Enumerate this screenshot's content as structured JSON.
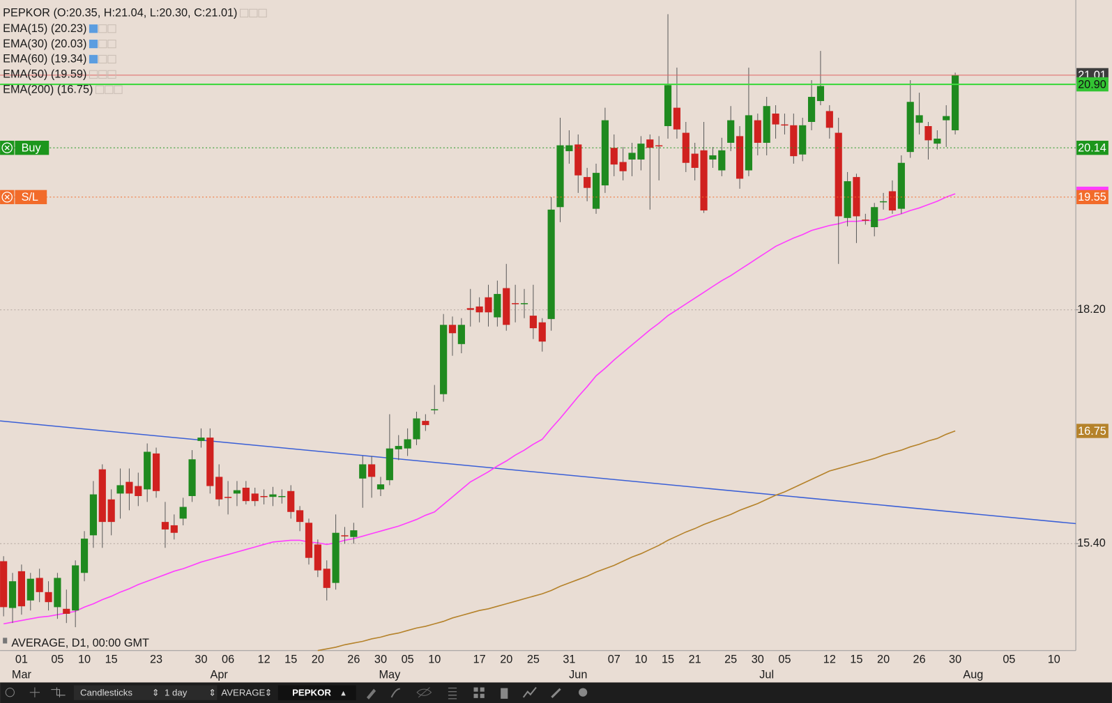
{
  "chart_data": {
    "type": "candlestick",
    "title": "PEPKOR (O:20.35, H:21.04, L:20.30, C:21.01)",
    "footer_label": "AVERAGE, D1, 00:00 GMT",
    "up_color": "#1f8a1f",
    "down_color": "#d0211f",
    "ylim": [
      14.12,
      21.91
    ],
    "yticks": [
      {
        "value": 15.4,
        "label": "15.40"
      },
      {
        "value": 18.2,
        "label": "18.20"
      }
    ],
    "grid": true,
    "categories": [
      null,
      null,
      "01",
      null,
      null,
      null,
      "05",
      null,
      null,
      "10",
      null,
      null,
      "15",
      null,
      null,
      null,
      null,
      "23",
      null,
      null,
      null,
      null,
      "30",
      null,
      null,
      "06",
      null,
      null,
      null,
      "12",
      null,
      null,
      "15",
      null,
      null,
      "20",
      null,
      null,
      null,
      "26",
      null,
      null,
      "30",
      null,
      null,
      "05",
      null,
      null,
      "10",
      null,
      null,
      null,
      null,
      "17",
      null,
      null,
      "20",
      null,
      null,
      "25",
      null,
      null,
      null,
      "31",
      null,
      null,
      null,
      null,
      "07",
      null,
      null,
      "10",
      null,
      null,
      "15",
      null,
      null,
      "21",
      null,
      null,
      null,
      "25",
      null,
      null,
      "30",
      null,
      null,
      "05",
      null,
      null,
      null,
      null,
      "12",
      null,
      null,
      "15",
      null,
      null,
      "20",
      null,
      null,
      null,
      "26",
      null,
      null,
      null,
      "30",
      null,
      null,
      null,
      null,
      null,
      "05",
      null,
      null,
      null,
      null,
      "10",
      null,
      null
    ],
    "month_categories": [
      null,
      null,
      "Mar",
      null,
      null,
      null,
      null,
      null,
      null,
      null,
      null,
      null,
      null,
      null,
      null,
      null,
      null,
      null,
      null,
      null,
      null,
      null,
      null,
      null,
      "Apr",
      null,
      null,
      null,
      null,
      null,
      null,
      null,
      null,
      null,
      null,
      null,
      null,
      null,
      null,
      null,
      null,
      null,
      null,
      "May",
      null,
      null,
      null,
      null,
      null,
      null,
      null,
      null,
      null,
      null,
      null,
      null,
      null,
      null,
      null,
      null,
      null,
      null,
      null,
      null,
      "Jun",
      null,
      null,
      null,
      null,
      null,
      null,
      null,
      null,
      null,
      null,
      null,
      null,
      null,
      null,
      null,
      null,
      null,
      null,
      null,
      null,
      "Jul",
      null,
      null,
      null,
      null,
      null,
      null,
      null,
      null,
      null,
      null,
      null,
      null,
      null,
      null,
      null,
      null,
      null,
      null,
      null,
      null,
      null,
      null,
      "Aug",
      null,
      null,
      null,
      null,
      null,
      null,
      null,
      null,
      null,
      null,
      null
    ],
    "open": [
      15.19,
      14.63,
      15.07,
      14.72,
      14.99,
      14.82,
      14.64,
      14.62,
      14.6,
      15.05,
      15.5,
      16.29,
      15.93,
      16.0,
      16.14,
      16.09,
      16.05,
      16.48,
      15.66,
      15.62,
      15.7,
      15.97,
      16.63,
      16.67,
      16.2,
      15.96,
      16.0,
      16.07,
      16.0,
      15.97,
      15.96,
      15.96,
      16.03,
      15.8,
      15.65,
      15.39,
      15.1,
      14.93,
      15.5,
      15.48,
      16.18,
      16.35,
      16.05,
      16.16,
      16.53,
      16.54,
      16.65,
      16.87,
      17.0,
      17.19,
      18.02,
      17.79,
      18.22,
      18.24,
      18.35,
      18.11,
      18.46,
      18.28,
      18.27,
      18.13,
      18.05,
      18.09,
      19.43,
      20.1,
      20.18,
      19.79,
      19.41,
      19.69,
      20.14,
      19.97,
      20.0,
      20.0,
      20.24,
      20.17,
      20.4,
      20.62,
      20.32,
      20.07,
      20.11,
      20.0,
      19.87,
      20.2,
      20.28,
      19.87,
      20.47,
      20.2,
      20.55,
      20.42,
      20.41,
      20.06,
      20.45,
      20.7,
      20.58,
      20.32,
      19.3,
      19.79,
      19.28,
      19.19,
      19.49,
      19.62,
      19.41,
      20.09,
      20.44,
      20.4,
      20.19,
      20.47,
      20.35,
      null,
      null,
      null,
      null,
      null,
      null,
      null,
      null,
      null,
      null,
      null,
      null,
      null
    ],
    "high": [
      15.25,
      15.05,
      15.15,
      15.05,
      15.1,
      14.95,
      15.05,
      14.85,
      15.2,
      15.55,
      16.15,
      16.35,
      16.05,
      16.3,
      16.3,
      16.25,
      16.6,
      16.55,
      15.9,
      15.75,
      15.95,
      16.52,
      16.78,
      16.78,
      16.35,
      16.15,
      16.15,
      16.15,
      16.07,
      16.05,
      16.08,
      16.05,
      16.1,
      15.85,
      15.7,
      15.45,
      15.2,
      15.75,
      15.6,
      15.65,
      16.45,
      16.45,
      16.2,
      16.95,
      16.7,
      16.78,
      16.98,
      16.95,
      17.3,
      18.15,
      18.12,
      18.1,
      18.45,
      18.35,
      18.5,
      18.55,
      18.75,
      18.5,
      18.45,
      18.5,
      18.1,
      19.55,
      20.5,
      20.35,
      20.3,
      19.9,
      19.95,
      20.62,
      20.3,
      20.15,
      20.2,
      20.28,
      20.3,
      20.28,
      21.74,
      21.1,
      20.45,
      20.2,
      20.45,
      20.15,
      20.26,
      20.64,
      20.4,
      21.1,
      20.55,
      20.75,
      20.65,
      20.55,
      20.55,
      20.5,
      20.95,
      21.3,
      20.65,
      20.5,
      19.85,
      19.83,
      19.35,
      19.48,
      19.6,
      19.75,
      20.05,
      20.95,
      20.8,
      20.45,
      20.35,
      20.65,
      21.04,
      null,
      null,
      null,
      null,
      null,
      null,
      null,
      null,
      null,
      null,
      null,
      null,
      null
    ],
    "low": [
      14.53,
      14.45,
      14.55,
      14.6,
      14.7,
      14.6,
      14.5,
      14.45,
      14.4,
      14.95,
      15.35,
      15.35,
      15.5,
      15.7,
      15.8,
      15.85,
      15.9,
      15.95,
      15.35,
      15.45,
      15.62,
      15.9,
      16.55,
      16.0,
      15.85,
      15.75,
      15.85,
      15.87,
      15.85,
      15.87,
      15.85,
      15.88,
      15.7,
      15.55,
      15.15,
      15.0,
      14.72,
      14.85,
      15.4,
      15.4,
      15.83,
      15.95,
      15.97,
      16.1,
      16.4,
      16.45,
      16.58,
      16.75,
      16.95,
      17.1,
      17.65,
      17.68,
      18.0,
      18.05,
      18.0,
      18.0,
      17.95,
      18.05,
      18.1,
      17.85,
      17.7,
      17.95,
      19.25,
      19.95,
      19.6,
      19.5,
      19.35,
      19.6,
      19.8,
      19.75,
      19.8,
      19.87,
      19.4,
      19.75,
      20.25,
      20.25,
      19.85,
      19.75,
      19.36,
      19.9,
      19.8,
      20.1,
      19.65,
      19.8,
      20.05,
      20.05,
      20.25,
      20.3,
      19.95,
      19.98,
      20.35,
      20.65,
      20.25,
      18.75,
      19.2,
      19.0,
      19.22,
      19.08,
      19.4,
      19.35,
      19.35,
      20.02,
      20.3,
      20.0,
      20.12,
      20.15,
      20.3,
      null,
      null,
      null,
      null,
      null,
      null,
      null,
      null,
      null,
      null,
      null,
      null,
      null
    ],
    "close": [
      14.64,
      14.95,
      14.65,
      14.98,
      14.82,
      14.7,
      14.99,
      14.56,
      15.14,
      15.46,
      15.99,
      15.66,
      15.66,
      16.1,
      16.0,
      15.97,
      16.5,
      16.03,
      15.57,
      15.53,
      15.84,
      16.41,
      16.67,
      16.09,
      15.93,
      15.95,
      16.04,
      15.91,
      15.91,
      15.96,
      15.99,
      15.97,
      15.78,
      15.66,
      15.23,
      15.08,
      14.87,
      15.53,
      15.49,
      15.56,
      16.35,
      16.2,
      16.11,
      16.54,
      16.57,
      16.65,
      16.9,
      16.82,
      17.01,
      18.02,
      17.92,
      18.02,
      18.2,
      18.17,
      18.17,
      18.39,
      18.02,
      18.27,
      18.28,
      17.98,
      17.82,
      19.4,
      20.17,
      20.17,
      19.81,
      19.66,
      19.84,
      20.47,
      19.94,
      19.86,
      20.08,
      20.19,
      20.14,
      20.16,
      20.89,
      20.36,
      19.96,
      19.9,
      19.39,
      20.05,
      20.11,
      20.47,
      19.77,
      20.53,
      20.2,
      20.64,
      20.42,
      20.41,
      20.04,
      20.41,
      20.75,
      20.88,
      20.38,
      19.32,
      19.74,
      19.32,
      19.27,
      19.43,
      19.5,
      19.39,
      19.96,
      20.69,
      20.53,
      20.23,
      20.25,
      20.52,
      21.01,
      null,
      null,
      null,
      null,
      null,
      null,
      null,
      null,
      null,
      null,
      null,
      null,
      null
    ],
    "series": [
      {
        "name": "EMA(15) (20.23)"
      },
      {
        "name": "EMA(30) (20.03)"
      },
      {
        "name": "EMA(60) (19.34)"
      },
      {
        "name": "EMA(50) (19.59)",
        "color": "#ff3dff",
        "values": [
          14.44,
          14.46,
          14.48,
          14.5,
          14.52,
          14.53,
          14.55,
          14.57,
          14.59,
          14.64,
          14.68,
          14.73,
          14.77,
          14.82,
          14.86,
          14.91,
          14.95,
          14.99,
          15.03,
          15.07,
          15.1,
          15.14,
          15.18,
          15.21,
          15.24,
          15.27,
          15.3,
          15.33,
          15.36,
          15.39,
          15.42,
          15.43,
          15.44,
          15.44,
          15.42,
          15.41,
          15.39,
          15.41,
          15.44,
          15.46,
          15.49,
          15.52,
          15.55,
          15.58,
          15.61,
          15.65,
          15.69,
          15.74,
          15.78,
          15.87,
          15.96,
          16.05,
          16.14,
          16.2,
          16.26,
          16.33,
          16.39,
          16.46,
          16.52,
          16.59,
          16.65,
          16.78,
          16.9,
          17.03,
          17.16,
          17.28,
          17.41,
          17.5,
          17.6,
          17.69,
          17.78,
          17.87,
          17.96,
          18.04,
          18.13,
          18.2,
          18.27,
          18.34,
          18.41,
          18.48,
          18.55,
          18.61,
          18.68,
          18.75,
          18.82,
          18.89,
          18.96,
          19.01,
          19.06,
          19.1,
          19.15,
          19.18,
          19.21,
          19.23,
          19.26,
          19.26,
          19.27,
          19.27,
          19.28,
          19.32,
          19.35,
          19.39,
          19.42,
          19.46,
          19.5,
          19.55,
          19.59,
          null,
          null,
          null,
          null,
          null,
          null,
          null,
          null,
          null,
          null,
          null,
          null,
          null
        ]
      },
      {
        "name": "EMA(200) (16.75)",
        "color": "#b5822a",
        "values": [
          null,
          null,
          null,
          null,
          null,
          null,
          null,
          null,
          null,
          null,
          null,
          null,
          null,
          null,
          null,
          null,
          null,
          null,
          null,
          null,
          null,
          null,
          null,
          null,
          null,
          null,
          null,
          null,
          null,
          null,
          null,
          null,
          null,
          null,
          null,
          14.12,
          14.14,
          14.16,
          14.19,
          14.21,
          14.23,
          14.26,
          14.28,
          14.31,
          14.33,
          14.36,
          14.39,
          14.41,
          14.44,
          14.47,
          14.51,
          14.54,
          14.57,
          14.6,
          14.62,
          14.65,
          14.68,
          14.71,
          14.74,
          14.77,
          14.8,
          14.84,
          14.89,
          14.93,
          14.97,
          15.01,
          15.06,
          15.1,
          15.14,
          15.19,
          15.24,
          15.28,
          15.33,
          15.38,
          15.44,
          15.49,
          15.54,
          15.58,
          15.63,
          15.67,
          15.71,
          15.75,
          15.8,
          15.84,
          15.88,
          15.93,
          15.98,
          16.02,
          16.07,
          16.12,
          16.17,
          16.22,
          16.27,
          16.3,
          16.33,
          16.36,
          16.39,
          16.42,
          16.46,
          16.49,
          16.52,
          16.56,
          16.59,
          16.63,
          16.66,
          16.71,
          16.75,
          null,
          null,
          null,
          null,
          null,
          null,
          null,
          null,
          null,
          null,
          null,
          null,
          null
        ]
      }
    ],
    "trendline": {
      "color": "#3a5fd6",
      "start": 16.87,
      "end": 15.64
    },
    "price_lines": [
      {
        "value": 21.01,
        "color": "#e06666",
        "badge_color": "#3d3d3d"
      },
      {
        "value": 20.9,
        "label": "20.90",
        "color": "#3fd83f",
        "badge_color": "#33c433"
      }
    ],
    "orders": [
      {
        "name": "Buy",
        "price": 20.14,
        "color": "#1c961c"
      },
      {
        "name": "S/L",
        "price": 19.55,
        "color": "#f26b2a"
      }
    ]
  },
  "toolbar": {
    "chart_type": "Candlesticks",
    "interval": "1 day",
    "price_type": "AVERAGE",
    "symbol": "PEPKOR"
  }
}
